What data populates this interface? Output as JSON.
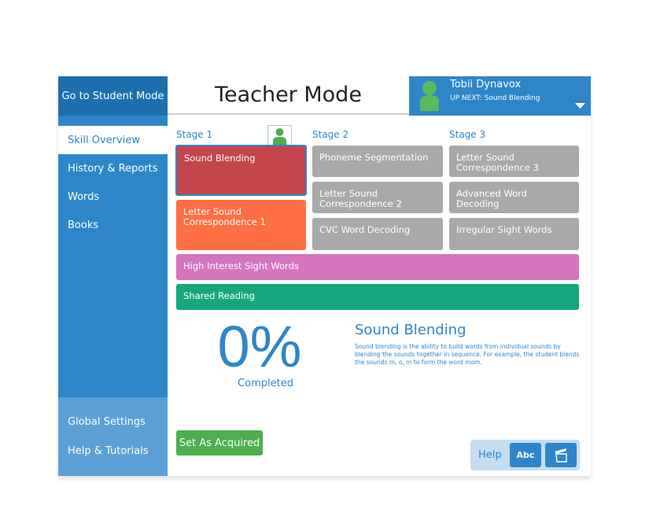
{
  "sidebar": {
    "student_mode": "Go to Student Mode",
    "items": [
      "Skill Overview",
      "History & Reports",
      "Words",
      "Books"
    ],
    "bottom_items": [
      "Global Settings",
      "Help & Tutorials"
    ]
  },
  "header": {
    "title": "Teacher Mode",
    "user_name": "Tobii Dynavox",
    "up_next": "UP NEXT: Sound Blending"
  },
  "stages": [
    "Stage 1",
    "Stage 2",
    "Stage 3"
  ],
  "skills": {
    "s1": [
      "Sound Blending",
      "Letter Sound Correspondence 1"
    ],
    "s2": [
      "Phoneme Segmentation",
      "Letter Sound Correspondence 2",
      "CVC Word Decoding"
    ],
    "s3": [
      "Letter Sound Correspondence 3",
      "Advanced Word Decoding",
      "Irregular Sight Words"
    ],
    "high_interest": "High Interest Sight Words",
    "shared_reading": "Shared Reading"
  },
  "progress": {
    "percent": "0%",
    "label": "Completed"
  },
  "detail": {
    "title": "Sound Blending",
    "description": "Sound blending is the ability to build words from individual sounds by blending the sounds together in sequence. For example, the student blends the sounds m, o, m to form the word mom."
  },
  "actions": {
    "set_acquired": "Set As Acquired",
    "help": "Help",
    "abc": "Abc"
  },
  "colors": {
    "primary": "#2e86c9",
    "selected_skill": "#c4454c",
    "next_skill": "#ff6e45",
    "sight_words": "#d475bd",
    "shared_reading": "#17a77e",
    "acquired": "#4cae4f"
  }
}
